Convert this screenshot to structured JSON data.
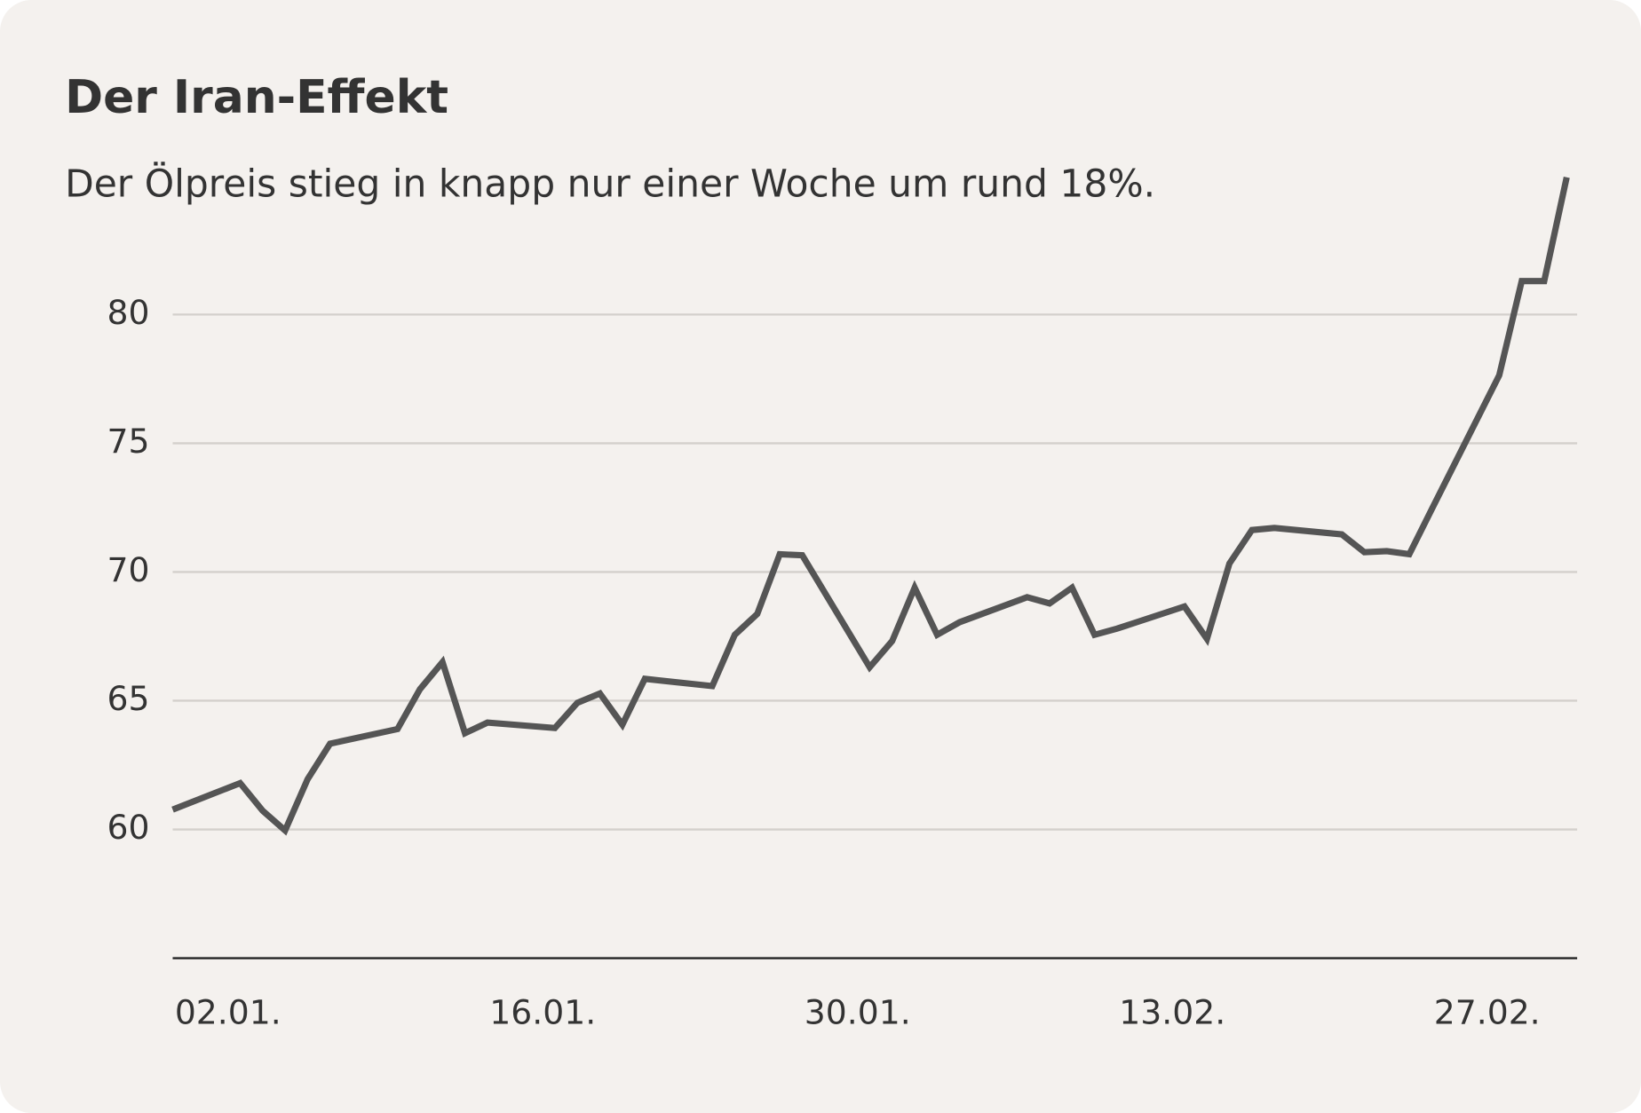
{
  "chart_data": {
    "type": "line",
    "title": "Der Iran-Effekt",
    "subtitle": "Der Ölpreis stieg in knapp nur einer Woche um rund 18%.",
    "x": [
      0,
      3,
      4,
      5,
      6,
      7,
      10,
      11,
      12,
      13,
      14,
      17,
      18,
      19,
      20,
      21,
      24,
      25,
      26,
      27,
      28,
      31,
      32,
      33,
      34,
      35,
      38,
      39,
      40,
      41,
      42,
      45,
      46,
      47,
      48,
      49,
      52,
      53,
      54,
      55,
      56,
      59,
      60,
      61,
      62
    ],
    "series": [
      {
        "color": "#555555",
        "values": [
          60.77,
          61.8,
          60.73,
          59.96,
          61.95,
          63.33,
          63.9,
          65.45,
          66.5,
          63.74,
          64.15,
          63.94,
          64.92,
          65.28,
          64.07,
          65.85,
          65.57,
          67.56,
          68.37,
          70.69,
          70.65,
          66.3,
          67.32,
          69.39,
          67.56,
          68.05,
          69.02,
          68.78,
          69.39,
          67.56,
          67.8,
          68.66,
          67.4,
          70.33,
          71.63,
          71.71,
          71.46,
          70.77,
          70.81,
          70.69,
          72.44,
          77.64,
          81.3,
          81.3,
          85.33
        ]
      }
    ],
    "xlim": [
      0,
      62
    ],
    "xticks": [
      {
        "value": 0,
        "label": "02.01."
      },
      {
        "value": 14,
        "label": "16.01."
      },
      {
        "value": 28,
        "label": "30.01."
      },
      {
        "value": 42,
        "label": "13.02."
      },
      {
        "value": 56,
        "label": "27.02."
      }
    ],
    "ylim": [
      55,
      86
    ],
    "yticks": [
      60,
      65,
      70,
      75,
      80
    ],
    "grid": true
  }
}
